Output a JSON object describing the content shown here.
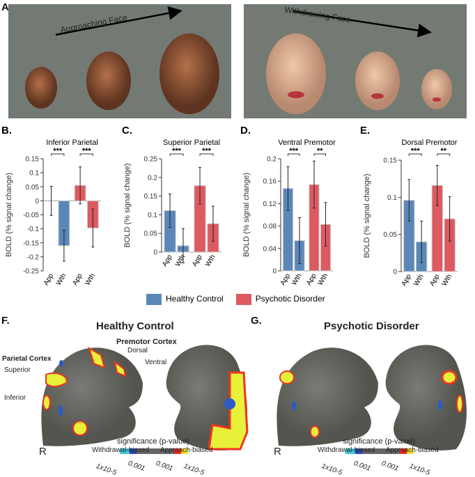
{
  "panel_a": {
    "label": "A.",
    "approach": "Approaching Face",
    "withdraw": "Withdrawing Face"
  },
  "legend": {
    "hc": "Healthy Control",
    "pd": "Psychotic Disorder"
  },
  "colors": {
    "hc": "#5b87b8",
    "pd": "#dd5a60",
    "bg": "#737a73"
  },
  "chart_data": [
    {
      "label": "B.",
      "type": "bar",
      "title": "Inferior Parietal",
      "ylabel": "BOLD (% signal change)",
      "ylim": [
        -0.25,
        0.15
      ],
      "yticks": [
        "0.15",
        "0.1",
        "0.05",
        "0",
        "-0.05",
        "-0.1",
        "-0.15",
        "-0.2",
        "-0.25"
      ],
      "categories": [
        "App",
        "Wth",
        "App",
        "Wth"
      ],
      "groups": [
        "Healthy Control",
        "Healthy Control",
        "Psychotic Disorder",
        "Psychotic Disorder"
      ],
      "values": [
        0.0,
        -0.16,
        0.055,
        -0.097
      ],
      "errors": [
        0.052,
        0.055,
        0.066,
        0.068
      ],
      "sig": [
        "***",
        "***"
      ]
    },
    {
      "label": "C.",
      "type": "bar",
      "title": "Superior Parietal",
      "ylabel": "BOLD (% signal change)",
      "ylim": [
        0,
        0.25
      ],
      "yticks": [
        "0.25",
        "0.2",
        "0.15",
        "0.1",
        "0.05",
        "0"
      ],
      "categories": [
        "App",
        "Wth",
        "App",
        "Wth"
      ],
      "groups": [
        "Healthy Control",
        "Healthy Control",
        "Psychotic Disorder",
        "Psychotic Disorder"
      ],
      "values": [
        0.111,
        0.017,
        0.178,
        0.076
      ],
      "errors": [
        0.045,
        0.046,
        0.049,
        0.047
      ],
      "sig": [
        "***",
        "***"
      ]
    },
    {
      "label": "D.",
      "type": "bar",
      "title": "Ventral Premotor",
      "ylabel": "BOLD (% signal change)",
      "ylim": [
        0,
        0.2
      ],
      "yticks": [
        "0.2",
        "0.16",
        "0.12",
        "0.08",
        "0.04",
        "0"
      ],
      "categories": [
        "App",
        "Wth",
        "App",
        "Wth"
      ],
      "groups": [
        "Healthy Control",
        "Healthy Control",
        "Psychotic Disorder",
        "Psychotic Disorder"
      ],
      "values": [
        0.147,
        0.054,
        0.154,
        0.083
      ],
      "errors": [
        0.039,
        0.041,
        0.042,
        0.039
      ],
      "sig": [
        "***",
        "**"
      ]
    },
    {
      "label": "E.",
      "type": "bar",
      "title": "Dorsal Premotor",
      "ylabel": "BOLD (% signal change)",
      "ylim": [
        0,
        0.15
      ],
      "yticks": [
        "0.15",
        "0.1",
        "0.05",
        "0"
      ],
      "categories": [
        "App",
        "Wth",
        "App",
        "Wth"
      ],
      "groups": [
        "Healthy Control",
        "Healthy Control",
        "Psychotic Disorder",
        "Psychotic Disorder"
      ],
      "values": [
        0.096,
        0.04,
        0.116,
        0.071
      ],
      "errors": [
        0.028,
        0.028,
        0.027,
        0.03
      ],
      "sig": [
        "***",
        "**"
      ]
    }
  ],
  "panel_f": {
    "label": "F.",
    "title": "Healthy Control",
    "premotor": "Premotor Cortex",
    "dorsal": "Dorsal",
    "ventral": "Ventral",
    "parietal": "Parietal Cortex",
    "superior": "Superior",
    "inferior": "Inferior",
    "hemi": "R"
  },
  "panel_g": {
    "label": "G.",
    "title": "Psychotic Disorder",
    "hemi": "R"
  },
  "colorbar": {
    "title": "significance (p-value)",
    "left": "Withdrawal-biased",
    "right": "Approach-biased",
    "ticks": [
      "1x10-5",
      "0.001",
      "0.001",
      "1x10-5"
    ]
  }
}
